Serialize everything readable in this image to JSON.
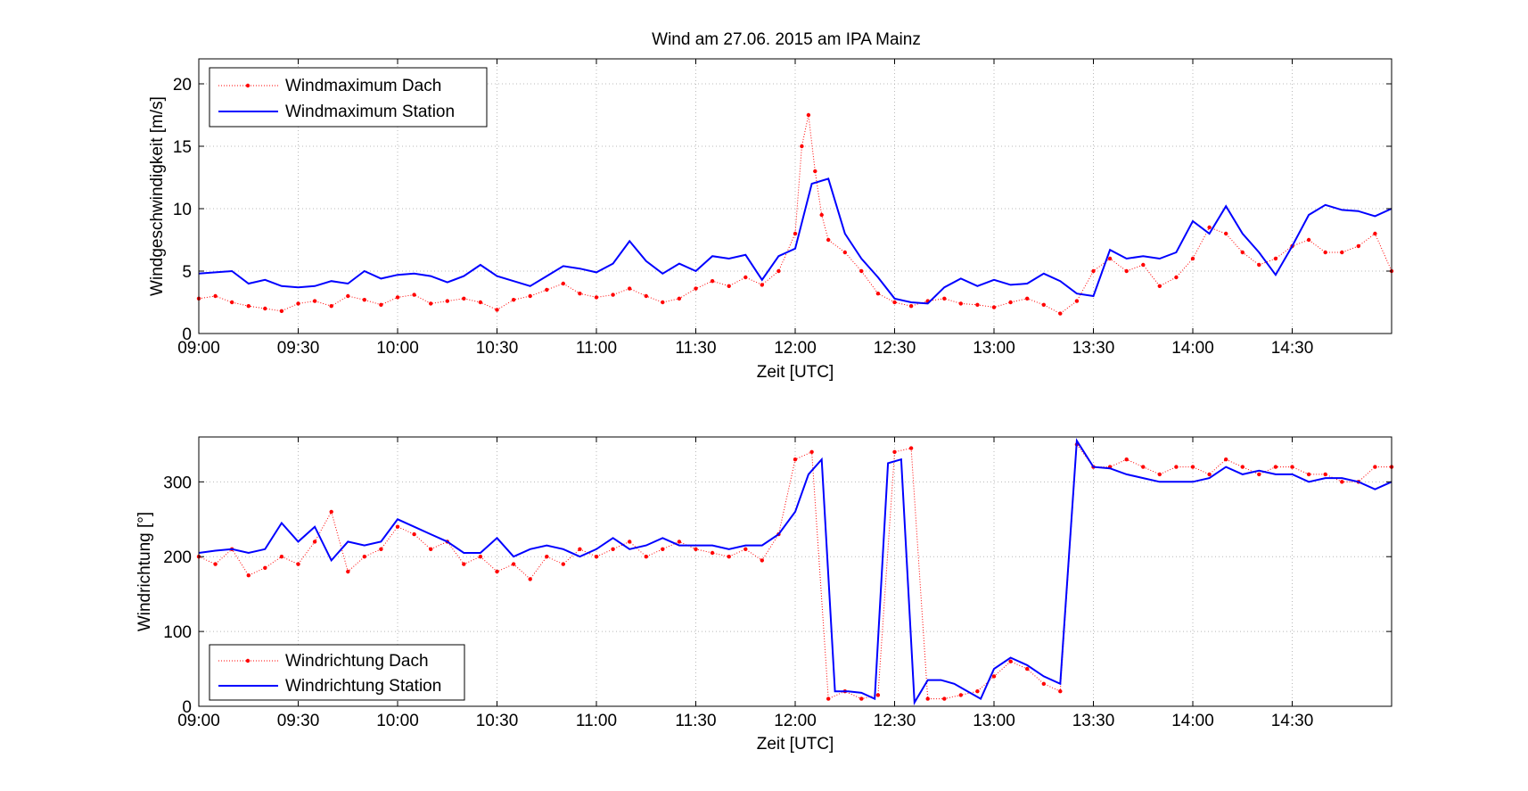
{
  "chart_data": [
    {
      "type": "line",
      "title": "Wind am 27.06. 2015 am IPA Mainz",
      "xlabel": "Zeit [UTC]",
      "ylabel": "Windgeschwindigkeit [m/s]",
      "xlim": [
        "09:00",
        "15:00"
      ],
      "ylim": [
        0,
        22
      ],
      "x_ticks": [
        "09:00",
        "09:30",
        "10:00",
        "10:30",
        "11:00",
        "11:30",
        "12:00",
        "12:30",
        "13:00",
        "13:30",
        "14:00",
        "14:30"
      ],
      "y_ticks": [
        0,
        5,
        10,
        15,
        20
      ],
      "grid": true,
      "legend_position": "top-left",
      "series": [
        {
          "name": "Windmaximum Dach",
          "style": "red dotted line with point markers",
          "color": "#ff0000",
          "x": [
            "09:00",
            "09:05",
            "09:10",
            "09:15",
            "09:20",
            "09:25",
            "09:30",
            "09:35",
            "09:40",
            "09:45",
            "09:50",
            "09:55",
            "10:00",
            "10:05",
            "10:10",
            "10:15",
            "10:20",
            "10:25",
            "10:30",
            "10:35",
            "10:40",
            "10:45",
            "10:50",
            "10:55",
            "11:00",
            "11:05",
            "11:10",
            "11:15",
            "11:20",
            "11:25",
            "11:30",
            "11:35",
            "11:40",
            "11:45",
            "11:50",
            "11:55",
            "12:00",
            "12:02",
            "12:04",
            "12:06",
            "12:08",
            "12:10",
            "12:15",
            "12:20",
            "12:25",
            "12:30",
            "12:35",
            "12:40",
            "12:45",
            "12:50",
            "12:55",
            "13:00",
            "13:05",
            "13:10",
            "13:15",
            "13:20",
            "13:25",
            "13:30",
            "13:35",
            "13:40",
            "13:45",
            "13:50",
            "13:55",
            "14:00",
            "14:05",
            "14:10",
            "14:15",
            "14:20",
            "14:25",
            "14:30",
            "14:35",
            "14:40",
            "14:45",
            "14:50",
            "14:55",
            "15:00"
          ],
          "y": [
            2.8,
            3.0,
            2.5,
            2.2,
            2.0,
            1.8,
            2.4,
            2.6,
            2.2,
            3.0,
            2.7,
            2.3,
            2.9,
            3.1,
            2.4,
            2.6,
            2.8,
            2.5,
            1.9,
            2.7,
            3.0,
            3.5,
            4.0,
            3.2,
            2.9,
            3.1,
            3.6,
            3.0,
            2.5,
            2.8,
            3.6,
            4.2,
            3.8,
            4.5,
            3.9,
            5.0,
            8.0,
            15.0,
            17.5,
            13.0,
            9.5,
            7.5,
            6.5,
            5.0,
            3.2,
            2.5,
            2.2,
            2.6,
            2.8,
            2.4,
            2.3,
            2.1,
            2.5,
            2.8,
            2.3,
            1.6,
            2.6,
            5.0,
            6.0,
            5.0,
            5.5,
            3.8,
            4.5,
            6.0,
            8.5,
            8.0,
            6.5,
            5.5,
            6.0,
            7.0,
            7.5,
            6.5,
            6.5,
            7.0,
            8.0,
            5.0
          ]
        },
        {
          "name": "Windmaximum Station",
          "style": "blue solid line",
          "color": "#0000ff",
          "x": [
            "09:00",
            "09:05",
            "09:10",
            "09:15",
            "09:20",
            "09:25",
            "09:30",
            "09:35",
            "09:40",
            "09:45",
            "09:50",
            "09:55",
            "10:00",
            "10:05",
            "10:10",
            "10:15",
            "10:20",
            "10:25",
            "10:30",
            "10:35",
            "10:40",
            "10:45",
            "10:50",
            "10:55",
            "11:00",
            "11:05",
            "11:10",
            "11:15",
            "11:20",
            "11:25",
            "11:30",
            "11:35",
            "11:40",
            "11:45",
            "11:50",
            "11:55",
            "12:00",
            "12:05",
            "12:10",
            "12:15",
            "12:20",
            "12:25",
            "12:30",
            "12:35",
            "12:40",
            "12:45",
            "12:50",
            "12:55",
            "13:00",
            "13:05",
            "13:10",
            "13:15",
            "13:20",
            "13:25",
            "13:30",
            "13:35",
            "13:40",
            "13:45",
            "13:50",
            "13:55",
            "14:00",
            "14:05",
            "14:10",
            "14:15",
            "14:20",
            "14:25",
            "14:30",
            "14:35",
            "14:40",
            "14:45",
            "14:50",
            "14:55",
            "15:00"
          ],
          "y": [
            4.8,
            4.9,
            5.0,
            4.0,
            4.3,
            3.8,
            3.7,
            3.8,
            4.2,
            4.0,
            5.0,
            4.4,
            4.7,
            4.8,
            4.6,
            4.1,
            4.6,
            5.5,
            4.6,
            4.2,
            3.8,
            4.6,
            5.4,
            5.2,
            4.9,
            5.6,
            7.4,
            5.8,
            4.8,
            5.6,
            5.0,
            6.2,
            6.0,
            6.3,
            4.3,
            6.2,
            6.8,
            12.0,
            12.4,
            8.0,
            6.0,
            4.5,
            2.8,
            2.5,
            2.4,
            3.7,
            4.4,
            3.8,
            4.3,
            3.9,
            4.0,
            4.8,
            4.2,
            3.2,
            3.0,
            6.7,
            6.0,
            6.2,
            6.0,
            6.5,
            9.0,
            8.0,
            10.2,
            8.0,
            6.5,
            4.7,
            7.0,
            9.5,
            10.3,
            9.9,
            9.8,
            9.4,
            10.0
          ]
        }
      ]
    },
    {
      "type": "line",
      "xlabel": "Zeit [UTC]",
      "ylabel": "Windrichtung [°]",
      "xlim": [
        "09:00",
        "15:00"
      ],
      "ylim": [
        0,
        360
      ],
      "x_ticks": [
        "09:00",
        "09:30",
        "10:00",
        "10:30",
        "11:00",
        "11:30",
        "12:00",
        "12:30",
        "13:00",
        "13:30",
        "14:00",
        "14:30"
      ],
      "y_ticks": [
        0,
        100,
        200,
        300
      ],
      "grid": true,
      "legend_position": "bottom-left",
      "series": [
        {
          "name": "Windrichtung Dach",
          "style": "red dotted line with point markers",
          "color": "#ff0000",
          "x": [
            "09:00",
            "09:05",
            "09:10",
            "09:15",
            "09:20",
            "09:25",
            "09:30",
            "09:35",
            "09:40",
            "09:45",
            "09:50",
            "09:55",
            "10:00",
            "10:05",
            "10:10",
            "10:15",
            "10:20",
            "10:25",
            "10:30",
            "10:35",
            "10:40",
            "10:45",
            "10:50",
            "10:55",
            "11:00",
            "11:05",
            "11:10",
            "11:15",
            "11:20",
            "11:25",
            "11:30",
            "11:35",
            "11:40",
            "11:45",
            "11:50",
            "11:55",
            "12:00",
            "12:05",
            "12:10",
            "12:15",
            "12:20",
            "12:25",
            "12:30",
            "12:35",
            "12:40",
            "12:45",
            "12:50",
            "12:55",
            "13:00",
            "13:05",
            "13:10",
            "13:15",
            "13:20",
            "13:25",
            "13:30",
            "13:35",
            "13:40",
            "13:45",
            "13:50",
            "13:55",
            "14:00",
            "14:05",
            "14:10",
            "14:15",
            "14:20",
            "14:25",
            "14:30",
            "14:35",
            "14:40",
            "14:45",
            "14:50",
            "14:55",
            "15:00"
          ],
          "y": [
            200,
            190,
            210,
            175,
            185,
            200,
            190,
            220,
            260,
            180,
            200,
            210,
            240,
            230,
            210,
            220,
            190,
            200,
            180,
            190,
            170,
            200,
            190,
            210,
            200,
            210,
            220,
            200,
            210,
            220,
            210,
            205,
            200,
            210,
            195,
            230,
            330,
            340,
            10,
            20,
            10,
            15,
            340,
            345,
            10,
            10,
            15,
            20,
            40,
            60,
            50,
            30,
            20,
            350,
            320,
            320,
            330,
            320,
            310,
            320,
            320,
            310,
            330,
            320,
            310,
            320,
            320,
            310,
            310,
            300,
            300,
            320,
            320
          ]
        },
        {
          "name": "Windrichtung Station",
          "style": "blue solid line",
          "color": "#0000ff",
          "x": [
            "09:00",
            "09:05",
            "09:10",
            "09:15",
            "09:20",
            "09:25",
            "09:30",
            "09:35",
            "09:40",
            "09:45",
            "09:50",
            "09:55",
            "10:00",
            "10:05",
            "10:10",
            "10:15",
            "10:20",
            "10:25",
            "10:30",
            "10:35",
            "10:40",
            "10:45",
            "10:50",
            "10:55",
            "11:00",
            "11:05",
            "11:10",
            "11:15",
            "11:20",
            "11:25",
            "11:30",
            "11:35",
            "11:40",
            "11:45",
            "11:50",
            "11:55",
            "12:00",
            "12:04",
            "12:08",
            "12:12",
            "12:16",
            "12:20",
            "12:24",
            "12:28",
            "12:32",
            "12:36",
            "12:40",
            "12:44",
            "12:48",
            "12:52",
            "12:56",
            "13:00",
            "13:05",
            "13:10",
            "13:15",
            "13:20",
            "13:25",
            "13:30",
            "13:35",
            "13:40",
            "13:45",
            "13:50",
            "13:55",
            "14:00",
            "14:05",
            "14:10",
            "14:15",
            "14:20",
            "14:25",
            "14:30",
            "14:35",
            "14:40",
            "14:45",
            "14:50",
            "14:55",
            "15:00"
          ],
          "y": [
            205,
            208,
            210,
            205,
            210,
            245,
            220,
            240,
            195,
            220,
            215,
            220,
            250,
            240,
            230,
            220,
            205,
            205,
            225,
            200,
            210,
            215,
            210,
            200,
            210,
            225,
            210,
            215,
            225,
            215,
            215,
            215,
            210,
            215,
            215,
            230,
            260,
            310,
            330,
            20,
            20,
            18,
            10,
            325,
            330,
            5,
            35,
            35,
            30,
            20,
            10,
            50,
            65,
            55,
            40,
            30,
            355,
            320,
            318,
            310,
            305,
            300,
            300,
            300,
            305,
            320,
            310,
            315,
            310,
            310,
            300,
            305,
            305,
            300,
            290,
            300
          ]
        }
      ]
    }
  ]
}
